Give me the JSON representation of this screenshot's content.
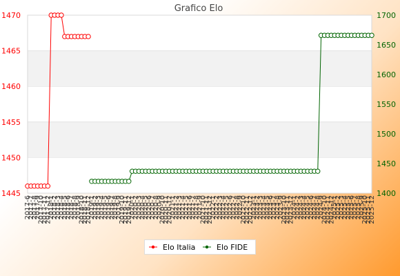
{
  "chart_data": {
    "type": "line",
    "title": "Grafico Elo",
    "x": [
      "2017-6",
      "2017-7",
      "2017-8",
      "2017-9",
      "2017-10",
      "2017-11",
      "2017-12",
      "2018-1",
      "2018-2",
      "2018-3",
      "2018-4",
      "2018-5",
      "2018-6",
      "2018-7",
      "2018-8",
      "2018-9",
      "2018-10",
      "2018-11",
      "2018-12",
      "2019-1",
      "2019-2",
      "2019-3",
      "2019-4",
      "2019-5",
      "2019-6",
      "2019-7",
      "2019-8",
      "2019-9",
      "2019-10",
      "2019-11",
      "2019-12",
      "2020-1",
      "2020-2",
      "2020-3",
      "2020-4",
      "2020-5",
      "2020-6",
      "2020-7",
      "2020-8",
      "2020-9",
      "2020-10",
      "2020-11",
      "2020-12",
      "2021-1",
      "2021-2",
      "2021-3",
      "2021-4",
      "2021-5",
      "2021-6",
      "2021-7",
      "2021-8",
      "2021-9",
      "2021-10",
      "2021-11",
      "2021-12",
      "2022-1",
      "2022-2",
      "2022-3",
      "2022-4",
      "2022-5",
      "2022-6",
      "2022-7",
      "2022-8",
      "2022-9",
      "2022-10",
      "2022-11",
      "2022-12",
      "2023-1",
      "2023-2",
      "2023-3",
      "2023-4",
      "2023-5",
      "2023-6",
      "2023-7",
      "2023-8",
      "2023-9",
      "2023-10",
      "2023-11",
      "2023-12",
      "2024-1",
      "2024-2",
      "2024-3",
      "2024-4",
      "2024-5",
      "2024-6",
      "2024-7",
      "2024-8",
      "2024-9",
      "2024-10",
      "2024-11",
      "2024-12",
      "2025-1",
      "2025-2",
      "2025-3",
      "2025-4",
      "2025-5",
      "2025-6",
      "2025-7",
      "2025-8",
      "2025-9",
      "2025-10",
      "2025-11",
      "2025-12"
    ],
    "x_tick_labels": [
      "2017-6",
      "2017-7",
      "2017-8",
      "2017-9",
      "2017-10",
      "2017-11",
      "2017-12",
      "2018-1",
      "2018-2",
      "2018-3",
      "2018-4",
      "2018-5",
      "2018-6",
      "2018-7",
      "2018-8",
      "2018-9",
      "2018-10",
      "2018-11",
      "2018-12",
      "2019-1",
      "2019-2",
      "2019-3",
      "2019-4",
      "2019-5",
      "2019-6",
      "2019-7",
      "2019-8",
      "2019-9",
      "2019-10",
      "2019-11",
      "2019-12",
      "2020-1",
      "2020-2",
      "2020-3",
      "2020-4",
      "2020-5",
      "2020-6",
      "2020-7",
      "2020-8",
      "2020-9",
      "2020-10",
      "2020-11",
      "2020-12",
      "2021-1",
      "2021-2",
      "2021-3",
      "2021-4",
      "2021-5",
      "2021-6",
      "2021-7",
      "2021-8",
      "2021-9",
      "2021-10",
      "2021-11",
      "2021-12",
      "2022-1",
      "2022-2",
      "2022-3",
      "2022-4",
      "2022-5",
      "2022-6",
      "2022-7",
      "2022-8",
      "2022-9",
      "2022-10",
      "2022-11",
      "2022-12",
      "2023-1",
      "2023-2",
      "2023-3",
      "2023-4",
      "2023-5",
      "2023-6",
      "2023-7",
      "2023-8",
      "2023-9",
      "2023-10",
      "2023-11",
      "2023-12",
      "2024-1",
      "2024-2",
      "2024-3",
      "2024-4",
      "2024-5",
      "2024-6",
      "2024-7",
      "2024-8",
      "2024-9",
      "2024-10",
      "2024-11",
      "2024-12",
      "2025-1",
      "2025-2",
      "2025-3",
      "2025-4",
      "2025-5",
      "2025-6",
      "2025-7",
      "2025-8",
      "2025-9",
      "2025-10",
      "2025-11",
      "2025-12"
    ],
    "y_left": {
      "ylim": [
        1445,
        1470
      ],
      "ticks": [
        "1445",
        "1450",
        "1455",
        "1460",
        "1465",
        "1470"
      ],
      "color": "#ff0000"
    },
    "y_right": {
      "ylim": [
        1400,
        1700
      ],
      "ticks": [
        "1400",
        "1450",
        "1500",
        "1550",
        "1600",
        "1650",
        "1700"
      ],
      "color": "#006400"
    },
    "grid": "horizontal bands",
    "legend_position": "bottom-center",
    "series": [
      {
        "name": "Elo Italia",
        "axis": "left",
        "color": "#ff0000",
        "values": [
          1446,
          1446,
          1446,
          1446,
          1446,
          1446,
          1446,
          1470,
          1470,
          1470,
          1470,
          1467,
          1467,
          1467,
          1467,
          1467,
          1467,
          1467,
          1467,
          null,
          null,
          null,
          null,
          null,
          null,
          null,
          null,
          null,
          null,
          null,
          null,
          null,
          null,
          null,
          null,
          null,
          null,
          null,
          null,
          null,
          null,
          null,
          null,
          null,
          null,
          null,
          null,
          null,
          null,
          null,
          null,
          null,
          null,
          null,
          null,
          null,
          null,
          null,
          null,
          null,
          null,
          null,
          null,
          null,
          null,
          null,
          null,
          null,
          null,
          null,
          null,
          null,
          null,
          null,
          null,
          null,
          null,
          null,
          null,
          null,
          null,
          null,
          null,
          null,
          null,
          null,
          null,
          null,
          null,
          null,
          null,
          null,
          null,
          null,
          null,
          null,
          null,
          null,
          null,
          null,
          null,
          null,
          null
        ]
      },
      {
        "name": "Elo FIDE",
        "axis": "right",
        "color": "#006400",
        "values": [
          null,
          null,
          null,
          null,
          null,
          null,
          null,
          null,
          null,
          null,
          null,
          null,
          null,
          null,
          null,
          null,
          null,
          null,
          null,
          1420,
          1420,
          1420,
          1420,
          1420,
          1420,
          1420,
          1420,
          1420,
          1420,
          1420,
          1420,
          1437,
          1437,
          1437,
          1437,
          1437,
          1437,
          1437,
          1437,
          1437,
          1437,
          1437,
          1437,
          1437,
          1437,
          1437,
          1437,
          1437,
          1437,
          1437,
          1437,
          1437,
          1437,
          1437,
          1437,
          1437,
          1437,
          1437,
          1437,
          1437,
          1437,
          1437,
          1437,
          1437,
          1437,
          1437,
          1437,
          1437,
          1437,
          1437,
          1437,
          1437,
          1437,
          1437,
          1437,
          1437,
          1437,
          1437,
          1437,
          1437,
          1437,
          1437,
          1437,
          1437,
          1437,
          1437,
          1437,
          1666,
          1666,
          1666,
          1666,
          1666,
          1666,
          1666,
          1666,
          1666,
          1666,
          1666,
          1666,
          1666,
          1666,
          1666,
          1666
        ]
      }
    ]
  }
}
